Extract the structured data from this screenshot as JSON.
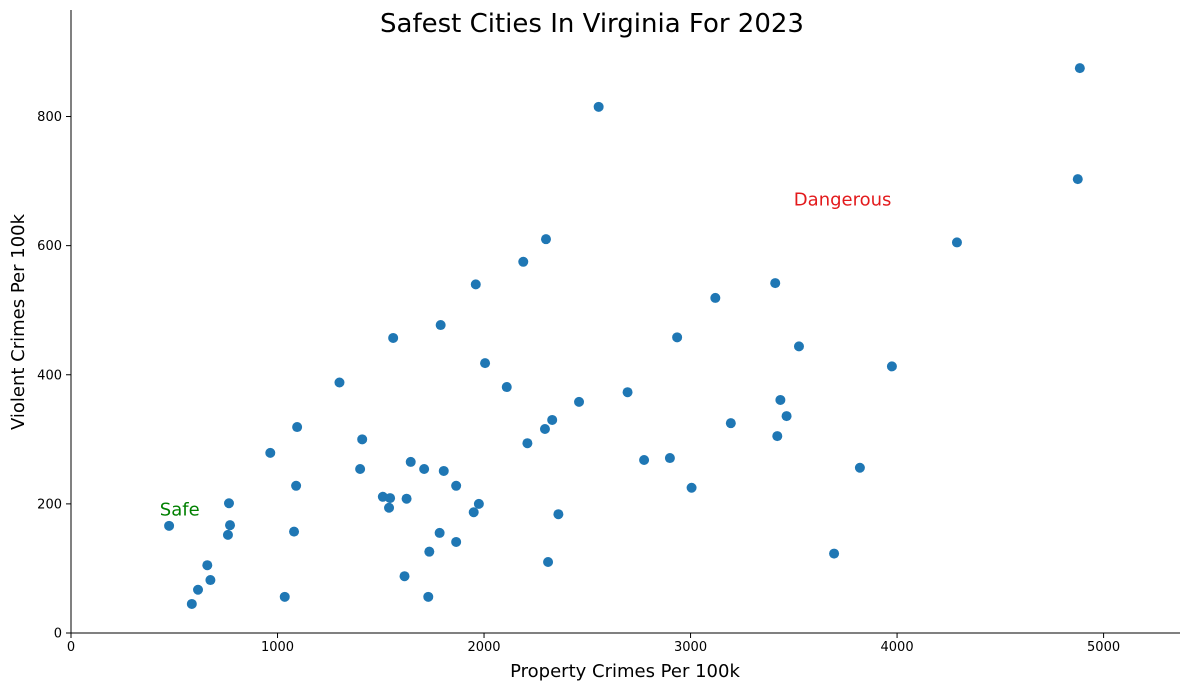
{
  "chart_data": {
    "type": "scatter",
    "title": "Safest Cities In Virginia For 2023",
    "xlabel": "Property Crimes Per 100k",
    "ylabel": "Violent Crimes Per 100k",
    "xlim": [
      0,
      5370
    ],
    "ylim": [
      0,
      965
    ],
    "xticks": [
      0,
      1000,
      2000,
      3000,
      4000,
      5000
    ],
    "yticks": [
      0,
      200,
      400,
      600,
      800
    ],
    "grid": false,
    "point_color": "#1f77b4",
    "annotations": [
      {
        "text": "Safe",
        "x": 430,
        "y": 182,
        "color": "#008000"
      },
      {
        "text": "Dangerous",
        "x": 3500,
        "y": 662,
        "color": "#e31a1c"
      }
    ],
    "series": [
      {
        "points": [
          [
            4885,
            875
          ],
          [
            4875,
            703
          ],
          [
            2555,
            815
          ],
          [
            4290,
            605
          ],
          [
            3410,
            542
          ],
          [
            3120,
            519
          ],
          [
            2300,
            610
          ],
          [
            2190,
            575
          ],
          [
            1960,
            540
          ],
          [
            1790,
            477
          ],
          [
            1560,
            457
          ],
          [
            2935,
            458
          ],
          [
            3525,
            444
          ],
          [
            3975,
            413
          ],
          [
            2005,
            418
          ],
          [
            1300,
            388
          ],
          [
            2110,
            381
          ],
          [
            2695,
            373
          ],
          [
            2460,
            358
          ],
          [
            3435,
            361
          ],
          [
            3465,
            336
          ],
          [
            2330,
            330
          ],
          [
            2295,
            316
          ],
          [
            3195,
            325
          ],
          [
            3420,
            305
          ],
          [
            1095,
            319
          ],
          [
            1410,
            300
          ],
          [
            2210,
            294
          ],
          [
            965,
            279
          ],
          [
            2775,
            268
          ],
          [
            2900,
            271
          ],
          [
            3820,
            256
          ],
          [
            1645,
            265
          ],
          [
            1710,
            254
          ],
          [
            1805,
            251
          ],
          [
            1400,
            254
          ],
          [
            3005,
            225
          ],
          [
            1865,
            228
          ],
          [
            1090,
            228
          ],
          [
            1510,
            211
          ],
          [
            1545,
            209
          ],
          [
            1625,
            208
          ],
          [
            1975,
            200
          ],
          [
            765,
            201
          ],
          [
            1540,
            194
          ],
          [
            1950,
            187
          ],
          [
            2360,
            184
          ],
          [
            475,
            166
          ],
          [
            770,
            167
          ],
          [
            1080,
            157
          ],
          [
            1785,
            155
          ],
          [
            760,
            152
          ],
          [
            1865,
            141
          ],
          [
            1735,
            126
          ],
          [
            3695,
            123
          ],
          [
            2310,
            110
          ],
          [
            660,
            105
          ],
          [
            1615,
            88
          ],
          [
            675,
            82
          ],
          [
            615,
            67
          ],
          [
            1035,
            56
          ],
          [
            1730,
            56
          ],
          [
            585,
            45
          ]
        ]
      }
    ]
  }
}
